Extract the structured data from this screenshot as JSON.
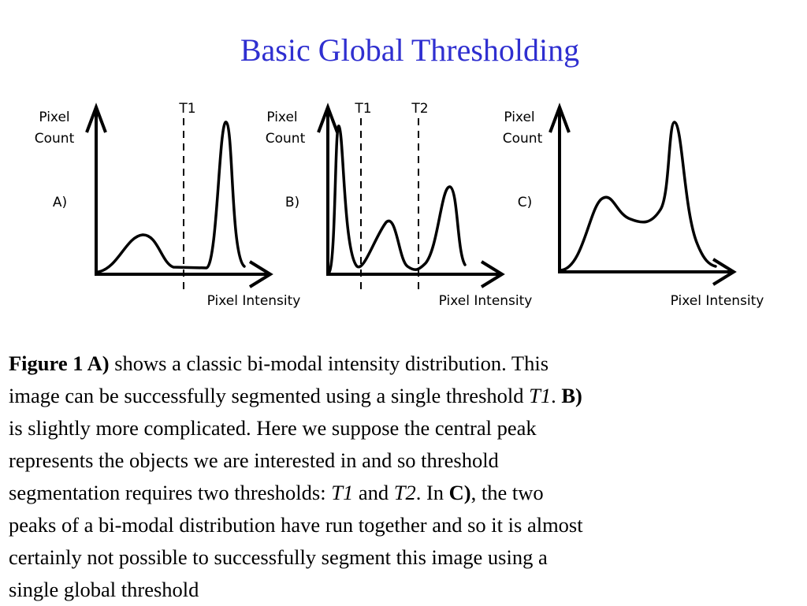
{
  "title": "Basic Global Thresholding",
  "panels": [
    {
      "panel_label": "A)",
      "y_axis_label": [
        "Pixel",
        "Count"
      ],
      "x_axis_label": "Pixel Intensity",
      "thresholds": [
        "T1"
      ]
    },
    {
      "panel_label": "B)",
      "y_axis_label": [
        "Pixel",
        "Count"
      ],
      "x_axis_label": "Pixel Intensity",
      "thresholds": [
        "T1",
        "T2"
      ]
    },
    {
      "panel_label": "C)",
      "y_axis_label": [
        "Pixel",
        "Count"
      ],
      "x_axis_label": "Pixel Intensity",
      "thresholds": []
    }
  ],
  "caption": {
    "l1_b1": "Figure 1 A)",
    "l1_t1": " shows a classic bi-modal intensity distribution. This",
    "l2_t1": "image can be successfully segmented using a single threshold ",
    "l2_i1": "T1",
    "l2_t2": ". ",
    "l2_b1": "B)",
    "l3_t1": "is slightly more complicated. Here we suppose the central peak",
    "l4_t1": "represents the objects we are interested in and so threshold",
    "l5_t1": "segmentation requires two thresholds: ",
    "l5_i1": "T1",
    "l5_t2": " and ",
    "l5_i2": "T2",
    "l5_t3": ". In ",
    "l5_b1": "C)",
    "l5_t4": ", the two",
    "l6_t1": "peaks of a bi-modal distribution have run together and so it is almost",
    "l7_t1": "certainly not possible to successfully segment this image using a",
    "l8_t1": "single global threshold"
  }
}
